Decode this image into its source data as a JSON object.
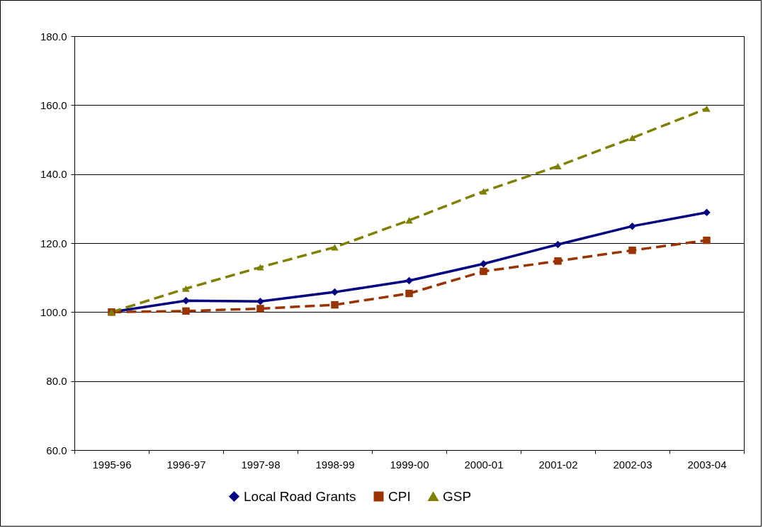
{
  "chart_data": {
    "type": "line",
    "categories": [
      "1995-96",
      "1996-97",
      "1997-98",
      "1998-99",
      "1999-00",
      "2000-01",
      "2001-02",
      "2002-03",
      "2003-04"
    ],
    "series": [
      {
        "name": "Local Road Grants",
        "color": "#000080",
        "marker": "diamond",
        "line_style": "solid",
        "values": [
          100,
          103.3,
          103.1,
          105.8,
          109.1,
          114.0,
          119.6,
          124.9,
          128.9
        ]
      },
      {
        "name": "CPI",
        "color": "#993300",
        "marker": "square",
        "line_style": "dashed",
        "values": [
          100,
          100.3,
          101.0,
          102.1,
          105.4,
          111.8,
          114.8,
          117.9,
          120.8
        ]
      },
      {
        "name": "GSP",
        "color": "#808000",
        "marker": "triangle",
        "line_style": "dashed",
        "values": [
          100,
          106.8,
          113.0,
          118.8,
          126.6,
          135.0,
          142.3,
          150.5,
          159.0
        ]
      }
    ],
    "ylim": [
      60,
      180
    ],
    "yticks": [
      {
        "value": 60,
        "label": "60.0"
      },
      {
        "value": 80,
        "label": "80.0"
      },
      {
        "value": 100,
        "label": "100.0"
      },
      {
        "value": 120,
        "label": "120.0"
      },
      {
        "value": 140,
        "label": "140.0"
      },
      {
        "value": 160,
        "label": "160.0"
      },
      {
        "value": 180,
        "label": "180.0"
      }
    ],
    "grid": "y",
    "legend": "bottom"
  }
}
